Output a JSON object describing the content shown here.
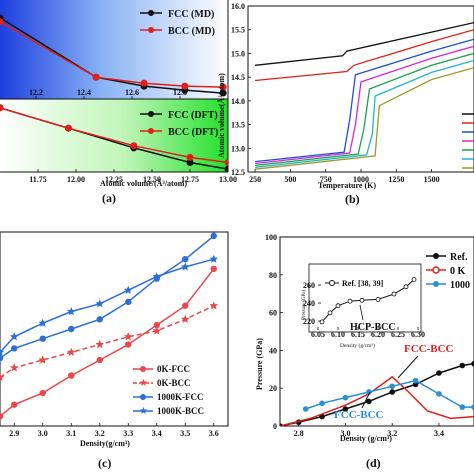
{
  "panel_labels": [
    "(a)",
    "(b)",
    "(c)",
    "(d)"
  ],
  "chart_data": [
    {
      "id": "a-top",
      "type": "line",
      "title": "",
      "ylabel": "",
      "xlim": [
        12.05,
        13.0
      ],
      "ylim": [
        0,
        1
      ],
      "x_ticks": [
        "12.2",
        "12.4",
        "12.6",
        "12.8"
      ],
      "x_tick_values": [
        12.2,
        12.4,
        12.6,
        12.8
      ],
      "series": [
        {
          "name": "FCC (MD)",
          "color": "#111111",
          "marker": "circle",
          "x": [
            12.05,
            12.45,
            12.65,
            12.82,
            12.98
          ],
          "y": [
            0.82,
            0.22,
            0.13,
            0.09,
            0.06
          ]
        },
        {
          "name": "BCC (MD)",
          "color": "#e0201b",
          "marker": "circle",
          "x": [
            12.05,
            12.45,
            12.65,
            12.82,
            12.98
          ],
          "y": [
            0.78,
            0.22,
            0.16,
            0.13,
            0.12
          ]
        }
      ]
    },
    {
      "id": "a-bottom",
      "type": "line",
      "title": "",
      "ylabel": "",
      "xlabel": "Atomic volume/(Å³/atom)",
      "xlim": [
        11.5,
        13.0
      ],
      "ylim": [
        0,
        1
      ],
      "x_ticks": [
        "11.75",
        "12.00",
        "12.25",
        "12.50",
        "12.75",
        "13.00"
      ],
      "x_tick_values": [
        11.75,
        12.0,
        12.25,
        12.5,
        12.75,
        13.0
      ],
      "series": [
        {
          "name": "FCC (DFT)",
          "color": "#111111",
          "marker": "circle",
          "x": [
            11.5,
            11.95,
            12.38,
            12.75,
            13.0
          ],
          "y": [
            0.88,
            0.6,
            0.33,
            0.13,
            0.04
          ]
        },
        {
          "name": "BCC (DFT)",
          "color": "#e0201b",
          "marker": "circle",
          "x": [
            11.5,
            11.95,
            12.38,
            12.75,
            13.0
          ],
          "y": [
            0.88,
            0.6,
            0.36,
            0.2,
            0.13
          ]
        }
      ]
    },
    {
      "id": "b",
      "type": "line",
      "xlabel": "Temperature (K)",
      "ylabel": "Atomic volume(Å³/atom)",
      "xlim": [
        200,
        1800
      ],
      "ylim": [
        12.5,
        16.0
      ],
      "x_ticks": [
        "250",
        "500",
        "750",
        "1000",
        "1250",
        "1500"
      ],
      "x_tick_values": [
        250,
        500,
        750,
        1000,
        1250,
        1500
      ],
      "y_ticks": [
        "12.5",
        "13.0",
        "13.5",
        "14.0",
        "14.5",
        "15.0",
        "15.5",
        "16.0"
      ],
      "y_tick_values": [
        12.5,
        13.0,
        13.5,
        14.0,
        14.5,
        15.0,
        15.5,
        16.0
      ],
      "series": [
        {
          "color": "#111111",
          "x": [
            250,
            870,
            900,
            1500,
            1800
          ],
          "y": [
            14.75,
            14.95,
            15.05,
            15.45,
            15.65
          ]
        },
        {
          "color": "#e0201b",
          "x": [
            250,
            900,
            950,
            1500,
            1800
          ],
          "y": [
            14.43,
            14.62,
            14.75,
            15.25,
            15.5
          ]
        },
        {
          "color": "#1f4fd8",
          "x": [
            250,
            880,
            920,
            960,
            1500,
            1800
          ],
          "y": [
            12.72,
            12.92,
            13.6,
            14.55,
            15.05,
            15.3
          ]
        },
        {
          "color": "#d62ad0",
          "x": [
            250,
            920,
            960,
            1000,
            1500,
            1800
          ],
          "y": [
            12.68,
            12.9,
            13.5,
            14.4,
            14.9,
            15.15
          ]
        },
        {
          "color": "#19a34a",
          "x": [
            250,
            980,
            1020,
            1060,
            1500,
            1800
          ],
          "y": [
            12.64,
            12.88,
            13.4,
            14.25,
            14.75,
            15.0
          ]
        },
        {
          "color": "#27b3c8",
          "x": [
            250,
            1040,
            1080,
            1100,
            1500,
            1800
          ],
          "y": [
            12.6,
            12.86,
            13.3,
            14.1,
            14.6,
            14.85
          ]
        },
        {
          "color": "#9a9a2a",
          "x": [
            250,
            1100,
            1110,
            1130,
            1500,
            1800
          ],
          "y": [
            12.56,
            12.84,
            13.2,
            13.9,
            14.45,
            14.7
          ]
        }
      ]
    },
    {
      "id": "c",
      "type": "line",
      "xlabel": "Density(g/cm³)",
      "xlim": [
        2.85,
        3.65
      ],
      "ylim": [
        0,
        1
      ],
      "x_ticks": [
        "2.9",
        "3.0",
        "3.1",
        "3.2",
        "3.3",
        "3.4",
        "3.5",
        "3.6"
      ],
      "x_tick_values": [
        2.9,
        3.0,
        3.1,
        3.2,
        3.3,
        3.4,
        3.5,
        3.6
      ],
      "series": [
        {
          "name": "0K-FCC",
          "color": "#e8474b",
          "marker": "circle",
          "dash": false,
          "x": [
            2.85,
            2.9,
            3.0,
            3.1,
            3.2,
            3.3,
            3.4,
            3.5,
            3.6
          ],
          "y": [
            0.05,
            0.11,
            0.17,
            0.26,
            0.34,
            0.42,
            0.52,
            0.62,
            0.81
          ]
        },
        {
          "name": "0K-BCC",
          "color": "#e8474b",
          "marker": "star",
          "dash": true,
          "x": [
            2.85,
            2.9,
            3.0,
            3.1,
            3.2,
            3.3,
            3.4,
            3.5,
            3.6
          ],
          "y": [
            0.25,
            0.3,
            0.34,
            0.38,
            0.42,
            0.46,
            0.49,
            0.55,
            0.62
          ]
        },
        {
          "name": "1000K-FCC",
          "color": "#2a6fd6",
          "marker": "circle",
          "dash": false,
          "x": [
            2.85,
            2.9,
            3.0,
            3.1,
            3.2,
            3.3,
            3.4,
            3.5,
            3.6
          ],
          "y": [
            0.35,
            0.4,
            0.45,
            0.5,
            0.55,
            0.64,
            0.76,
            0.86,
            0.98
          ]
        },
        {
          "name": "1000K-BCC",
          "color": "#2a6fd6",
          "marker": "star",
          "dash": false,
          "x": [
            2.85,
            2.9,
            3.0,
            3.1,
            3.2,
            3.3,
            3.4,
            3.5,
            3.6
          ],
          "y": [
            0.38,
            0.46,
            0.53,
            0.59,
            0.63,
            0.7,
            0.77,
            0.82,
            0.86
          ]
        }
      ]
    },
    {
      "id": "d",
      "type": "line",
      "xlabel": "Density (g/cm³)",
      "ylabel": "Pressure (GPa)",
      "xlim": [
        2.72,
        3.55
      ],
      "ylim": [
        0,
        100
      ],
      "x_ticks": [
        "2.8",
        "3.0",
        "3.2",
        "3.4"
      ],
      "x_tick_values": [
        2.8,
        3.0,
        3.2,
        3.4
      ],
      "y_ticks": [
        "0",
        "20",
        "40",
        "60",
        "80",
        "100"
      ],
      "y_tick_values": [
        0,
        20,
        40,
        60,
        80,
        100
      ],
      "legend": [
        {
          "label": "Ref.",
          "color": "#111111"
        },
        {
          "label": "0 K",
          "color": "#e0201b"
        },
        {
          "label": "1000",
          "color": "#2a8fd6"
        }
      ],
      "series": [
        {
          "name": "Ref.",
          "color": "#111111",
          "marker": "circle",
          "x": [
            2.72,
            2.8,
            2.9,
            3.0,
            3.1,
            3.2,
            3.3,
            3.4,
            3.5,
            3.55
          ],
          "y": [
            0,
            2,
            5,
            9,
            13,
            18,
            22,
            28,
            32,
            33
          ]
        },
        {
          "name": "0 K",
          "color": "#e0201b",
          "marker": "",
          "x": [
            2.72,
            2.85,
            3.0,
            3.1,
            3.2,
            3.27,
            3.35,
            3.45,
            3.55
          ],
          "y": [
            0,
            4,
            11,
            17,
            26,
            18,
            8,
            4,
            5
          ]
        },
        {
          "name": "1000",
          "color": "#2a8fd6",
          "marker": "circle",
          "x": [
            2.83,
            2.9,
            3.0,
            3.1,
            3.2,
            3.3,
            3.4,
            3.5,
            3.55
          ],
          "y": [
            9,
            12,
            15,
            18,
            21,
            24,
            17,
            10,
            10
          ]
        }
      ],
      "annotations": {
        "fcc_bcc_top": "FCC-BCC",
        "fcc_bcc_bottom": "FCC-BCC"
      },
      "inset": {
        "title": "Ref. [38, 39]",
        "xlabel": "Density (g/cm³)",
        "ylabel": "Pressure (GPa)",
        "annotation": "HCP-BCC",
        "x_ticks": [
          "6.05",
          "6.10",
          "6.15",
          "6.20",
          "6.25",
          "6.30"
        ],
        "x_tick_values": [
          6.05,
          6.1,
          6.15,
          6.2,
          6.25,
          6.3
        ],
        "y_ticks": [
          "220",
          "240",
          "260"
        ],
        "y_tick_values": [
          220,
          240,
          260
        ],
        "xlim": [
          6.05,
          6.3
        ],
        "ylim": [
          210,
          270
        ],
        "series": [
          {
            "color": "#111111",
            "x": [
              6.06,
              6.08,
              6.1,
              6.13,
              6.16,
              6.2,
              6.24,
              6.27,
              6.29
            ],
            "y": [
              219,
              229,
              237,
              242,
              243,
              244,
              250,
              258,
              266
            ]
          }
        ]
      }
    }
  ]
}
